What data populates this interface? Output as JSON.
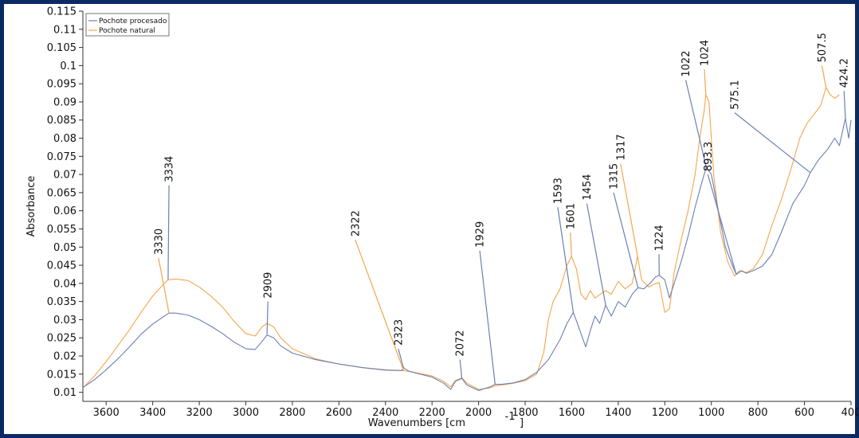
{
  "colors": {
    "frame": "#0b2a63",
    "series_processed": "#6b7fb5",
    "series_natural": "#f5a54c",
    "axis": "#333333"
  },
  "chart_data": {
    "type": "line",
    "title": "",
    "xlabel_main": "Wavenumbers [cm",
    "xlabel_sup": "-1",
    "xlabel_close": "]",
    "ylabel": "Absorbance",
    "xlim": [
      3700,
      400
    ],
    "ylim": [
      0.0075,
      0.115
    ],
    "x_reversed": true,
    "grid": false,
    "legend_position": "top-left",
    "x_ticks": [
      3600,
      3400,
      3200,
      3000,
      2800,
      2600,
      2400,
      2200,
      2000,
      1800,
      1600,
      1400,
      1200,
      1000,
      800,
      600,
      400
    ],
    "y_ticks": [
      "0.01",
      "0.015",
      "0.02",
      "0.025",
      "0.03",
      "0.035",
      "0.04",
      "0.045",
      "0.05",
      "0.055",
      "0.06",
      "0.065",
      "0.07",
      "0.075",
      "0.08",
      "0.085",
      "0.09",
      "0.095",
      "0.1",
      "0.105",
      "0.11",
      "0.115"
    ],
    "series": [
      {
        "name": "Pochote procesado",
        "color": "#6b7fb5",
        "points": [
          [
            3700,
            0.0113
          ],
          [
            3650,
            0.0135
          ],
          [
            3600,
            0.0162
          ],
          [
            3550,
            0.0192
          ],
          [
            3500,
            0.0225
          ],
          [
            3450,
            0.026
          ],
          [
            3400,
            0.0288
          ],
          [
            3350,
            0.031
          ],
          [
            3330,
            0.0318
          ],
          [
            3300,
            0.0318
          ],
          [
            3250,
            0.0313
          ],
          [
            3200,
            0.03
          ],
          [
            3150,
            0.0282
          ],
          [
            3100,
            0.0262
          ],
          [
            3050,
            0.0238
          ],
          [
            3000,
            0.022
          ],
          [
            2960,
            0.0218
          ],
          [
            2930,
            0.024
          ],
          [
            2909,
            0.0258
          ],
          [
            2880,
            0.025
          ],
          [
            2850,
            0.0228
          ],
          [
            2800,
            0.0208
          ],
          [
            2700,
            0.019
          ],
          [
            2600,
            0.0178
          ],
          [
            2500,
            0.0168
          ],
          [
            2400,
            0.0161
          ],
          [
            2330,
            0.016
          ],
          [
            2323,
            0.0168
          ],
          [
            2300,
            0.0158
          ],
          [
            2200,
            0.0142
          ],
          [
            2150,
            0.0125
          ],
          [
            2120,
            0.0108
          ],
          [
            2100,
            0.013
          ],
          [
            2072,
            0.0138
          ],
          [
            2050,
            0.012
          ],
          [
            2000,
            0.0105
          ],
          [
            1950,
            0.0115
          ],
          [
            1929,
            0.0122
          ],
          [
            1900,
            0.0122
          ],
          [
            1850,
            0.0126
          ],
          [
            1800,
            0.0135
          ],
          [
            1750,
            0.0155
          ],
          [
            1700,
            0.019
          ],
          [
            1650,
            0.0245
          ],
          [
            1620,
            0.029
          ],
          [
            1593,
            0.032
          ],
          [
            1570,
            0.028
          ],
          [
            1540,
            0.0225
          ],
          [
            1520,
            0.027
          ],
          [
            1500,
            0.031
          ],
          [
            1480,
            0.029
          ],
          [
            1454,
            0.034
          ],
          [
            1430,
            0.031
          ],
          [
            1400,
            0.035
          ],
          [
            1370,
            0.0335
          ],
          [
            1340,
            0.037
          ],
          [
            1315,
            0.0388
          ],
          [
            1290,
            0.0385
          ],
          [
            1260,
            0.0402
          ],
          [
            1240,
            0.0418
          ],
          [
            1224,
            0.0422
          ],
          [
            1200,
            0.041
          ],
          [
            1180,
            0.036
          ],
          [
            1160,
            0.04
          ],
          [
            1130,
            0.046
          ],
          [
            1100,
            0.053
          ],
          [
            1070,
            0.061
          ],
          [
            1040,
            0.068
          ],
          [
            1022,
            0.072
          ],
          [
            1000,
            0.07
          ],
          [
            970,
            0.06
          ],
          [
            940,
            0.05
          ],
          [
            910,
            0.045
          ],
          [
            893,
            0.0425
          ],
          [
            870,
            0.0435
          ],
          [
            850,
            0.0428
          ],
          [
            820,
            0.0435
          ],
          [
            780,
            0.0448
          ],
          [
            740,
            0.048
          ],
          [
            700,
            0.054
          ],
          [
            650,
            0.062
          ],
          [
            600,
            0.067
          ],
          [
            575,
            0.0705
          ],
          [
            540,
            0.074
          ],
          [
            500,
            0.077
          ],
          [
            470,
            0.08
          ],
          [
            450,
            0.078
          ],
          [
            424.2,
            0.0855
          ],
          [
            410,
            0.08
          ],
          [
            400,
            0.085
          ]
        ]
      },
      {
        "name": "Pochote natural",
        "color": "#f5a54c",
        "points": [
          [
            3700,
            0.0112
          ],
          [
            3650,
            0.0145
          ],
          [
            3600,
            0.0185
          ],
          [
            3550,
            0.0228
          ],
          [
            3500,
            0.0272
          ],
          [
            3450,
            0.032
          ],
          [
            3400,
            0.0365
          ],
          [
            3350,
            0.04
          ],
          [
            3334,
            0.041
          ],
          [
            3300,
            0.0412
          ],
          [
            3250,
            0.0408
          ],
          [
            3200,
            0.039
          ],
          [
            3150,
            0.0365
          ],
          [
            3100,
            0.0335
          ],
          [
            3050,
            0.0295
          ],
          [
            3000,
            0.0262
          ],
          [
            2960,
            0.0255
          ],
          [
            2930,
            0.028
          ],
          [
            2909,
            0.029
          ],
          [
            2880,
            0.028
          ],
          [
            2850,
            0.025
          ],
          [
            2800,
            0.022
          ],
          [
            2700,
            0.0192
          ],
          [
            2600,
            0.0178
          ],
          [
            2500,
            0.0168
          ],
          [
            2400,
            0.0162
          ],
          [
            2322,
            0.016
          ],
          [
            2300,
            0.0158
          ],
          [
            2200,
            0.0145
          ],
          [
            2150,
            0.013
          ],
          [
            2120,
            0.0115
          ],
          [
            2100,
            0.0132
          ],
          [
            2072,
            0.014
          ],
          [
            2050,
            0.0125
          ],
          [
            2000,
            0.0108
          ],
          [
            1950,
            0.0112
          ],
          [
            1929,
            0.0118
          ],
          [
            1900,
            0.012
          ],
          [
            1850,
            0.0125
          ],
          [
            1800,
            0.0132
          ],
          [
            1750,
            0.015
          ],
          [
            1720,
            0.021
          ],
          [
            1700,
            0.03
          ],
          [
            1680,
            0.035
          ],
          [
            1650,
            0.0385
          ],
          [
            1620,
            0.045
          ],
          [
            1601,
            0.0475
          ],
          [
            1580,
            0.044
          ],
          [
            1560,
            0.037
          ],
          [
            1540,
            0.0355
          ],
          [
            1520,
            0.038
          ],
          [
            1500,
            0.036
          ],
          [
            1454,
            0.038
          ],
          [
            1430,
            0.037
          ],
          [
            1400,
            0.0405
          ],
          [
            1370,
            0.0385
          ],
          [
            1340,
            0.04
          ],
          [
            1317,
            0.0475
          ],
          [
            1300,
            0.041
          ],
          [
            1270,
            0.039
          ],
          [
            1240,
            0.04
          ],
          [
            1224,
            0.0402
          ],
          [
            1200,
            0.032
          ],
          [
            1180,
            0.033
          ],
          [
            1160,
            0.043
          ],
          [
            1130,
            0.052
          ],
          [
            1100,
            0.06
          ],
          [
            1070,
            0.07
          ],
          [
            1050,
            0.08
          ],
          [
            1030,
            0.088
          ],
          [
            1024,
            0.092
          ],
          [
            1010,
            0.09
          ],
          [
            990,
            0.07
          ],
          [
            960,
            0.054
          ],
          [
            930,
            0.046
          ],
          [
            900,
            0.042
          ],
          [
            880,
            0.0435
          ],
          [
            850,
            0.043
          ],
          [
            820,
            0.044
          ],
          [
            780,
            0.048
          ],
          [
            740,
            0.056
          ],
          [
            700,
            0.063
          ],
          [
            660,
            0.071
          ],
          [
            620,
            0.08
          ],
          [
            590,
            0.084
          ],
          [
            560,
            0.0865
          ],
          [
            530,
            0.089
          ],
          [
            507.5,
            0.094
          ],
          [
            490,
            0.092
          ],
          [
            470,
            0.091
          ],
          [
            450,
            0.092
          ]
        ]
      }
    ],
    "annotations": [
      {
        "text": "3334",
        "color": "#6b7fb5",
        "x": 3334,
        "y": 0.041,
        "text_x": 3330,
        "text_y": 0.067
      },
      {
        "text": "3330",
        "color": "#f5a54c",
        "x": 3330,
        "y": 0.0318,
        "text_x": 3375,
        "text_y": 0.047
      },
      {
        "text": "2909",
        "color": "#6b7fb5",
        "x": 2909,
        "y": 0.026,
        "text_x": 2905,
        "text_y": 0.035
      },
      {
        "text": "2322",
        "color": "#f5a54c",
        "x": 2322,
        "y": 0.016,
        "text_x": 2530,
        "text_y": 0.052
      },
      {
        "text": "2323",
        "color": "#6b7fb5",
        "x": 2323,
        "y": 0.0168,
        "text_x": 2345,
        "text_y": 0.022
      },
      {
        "text": "2072",
        "color": "#6b7fb5",
        "x": 2072,
        "y": 0.0138,
        "text_x": 2080,
        "text_y": 0.019
      },
      {
        "text": "1929",
        "color": "#6b7fb5",
        "x": 1929,
        "y": 0.0122,
        "text_x": 1995,
        "text_y": 0.049
      },
      {
        "text": "1593",
        "color": "#6b7fb5",
        "x": 1593,
        "y": 0.032,
        "text_x": 1660,
        "text_y": 0.061
      },
      {
        "text": "1601",
        "color": "#f5a54c",
        "x": 1601,
        "y": 0.0475,
        "text_x": 1605,
        "text_y": 0.054
      },
      {
        "text": "1454",
        "color": "#6b7fb5",
        "x": 1454,
        "y": 0.034,
        "text_x": 1535,
        "text_y": 0.062
      },
      {
        "text": "1315",
        "color": "#6b7fb5",
        "x": 1315,
        "y": 0.0388,
        "text_x": 1420,
        "text_y": 0.065
      },
      {
        "text": "1317",
        "color": "#f5a54c",
        "x": 1317,
        "y": 0.0475,
        "text_x": 1390,
        "text_y": 0.073
      },
      {
        "text": "1224",
        "color": "#6b7fb5",
        "x": 1224,
        "y": 0.0422,
        "text_x": 1225,
        "text_y": 0.048
      },
      {
        "text": "1022",
        "color": "#6b7fb5",
        "x": 1022,
        "y": 0.072,
        "text_x": 1110,
        "text_y": 0.096
      },
      {
        "text": "1024",
        "color": "#f5a54c",
        "x": 1024,
        "y": 0.092,
        "text_x": 1030,
        "text_y": 0.099
      },
      {
        "text": "893.3",
        "color": "#6b7fb5",
        "x": 893.3,
        "y": 0.0425,
        "text_x": 1015,
        "text_y": 0.07
      },
      {
        "text": "575.1",
        "color": "#6b7fb5",
        "x": 575.1,
        "y": 0.0705,
        "text_x": 900,
        "text_y": 0.087
      },
      {
        "text": "507.5",
        "color": "#f5a54c",
        "x": 507.5,
        "y": 0.094,
        "text_x": 525,
        "text_y": 0.1
      },
      {
        "text": "424.2",
        "color": "#6b7fb5",
        "x": 424.2,
        "y": 0.0855,
        "text_x": 430,
        "text_y": 0.093
      }
    ]
  }
}
